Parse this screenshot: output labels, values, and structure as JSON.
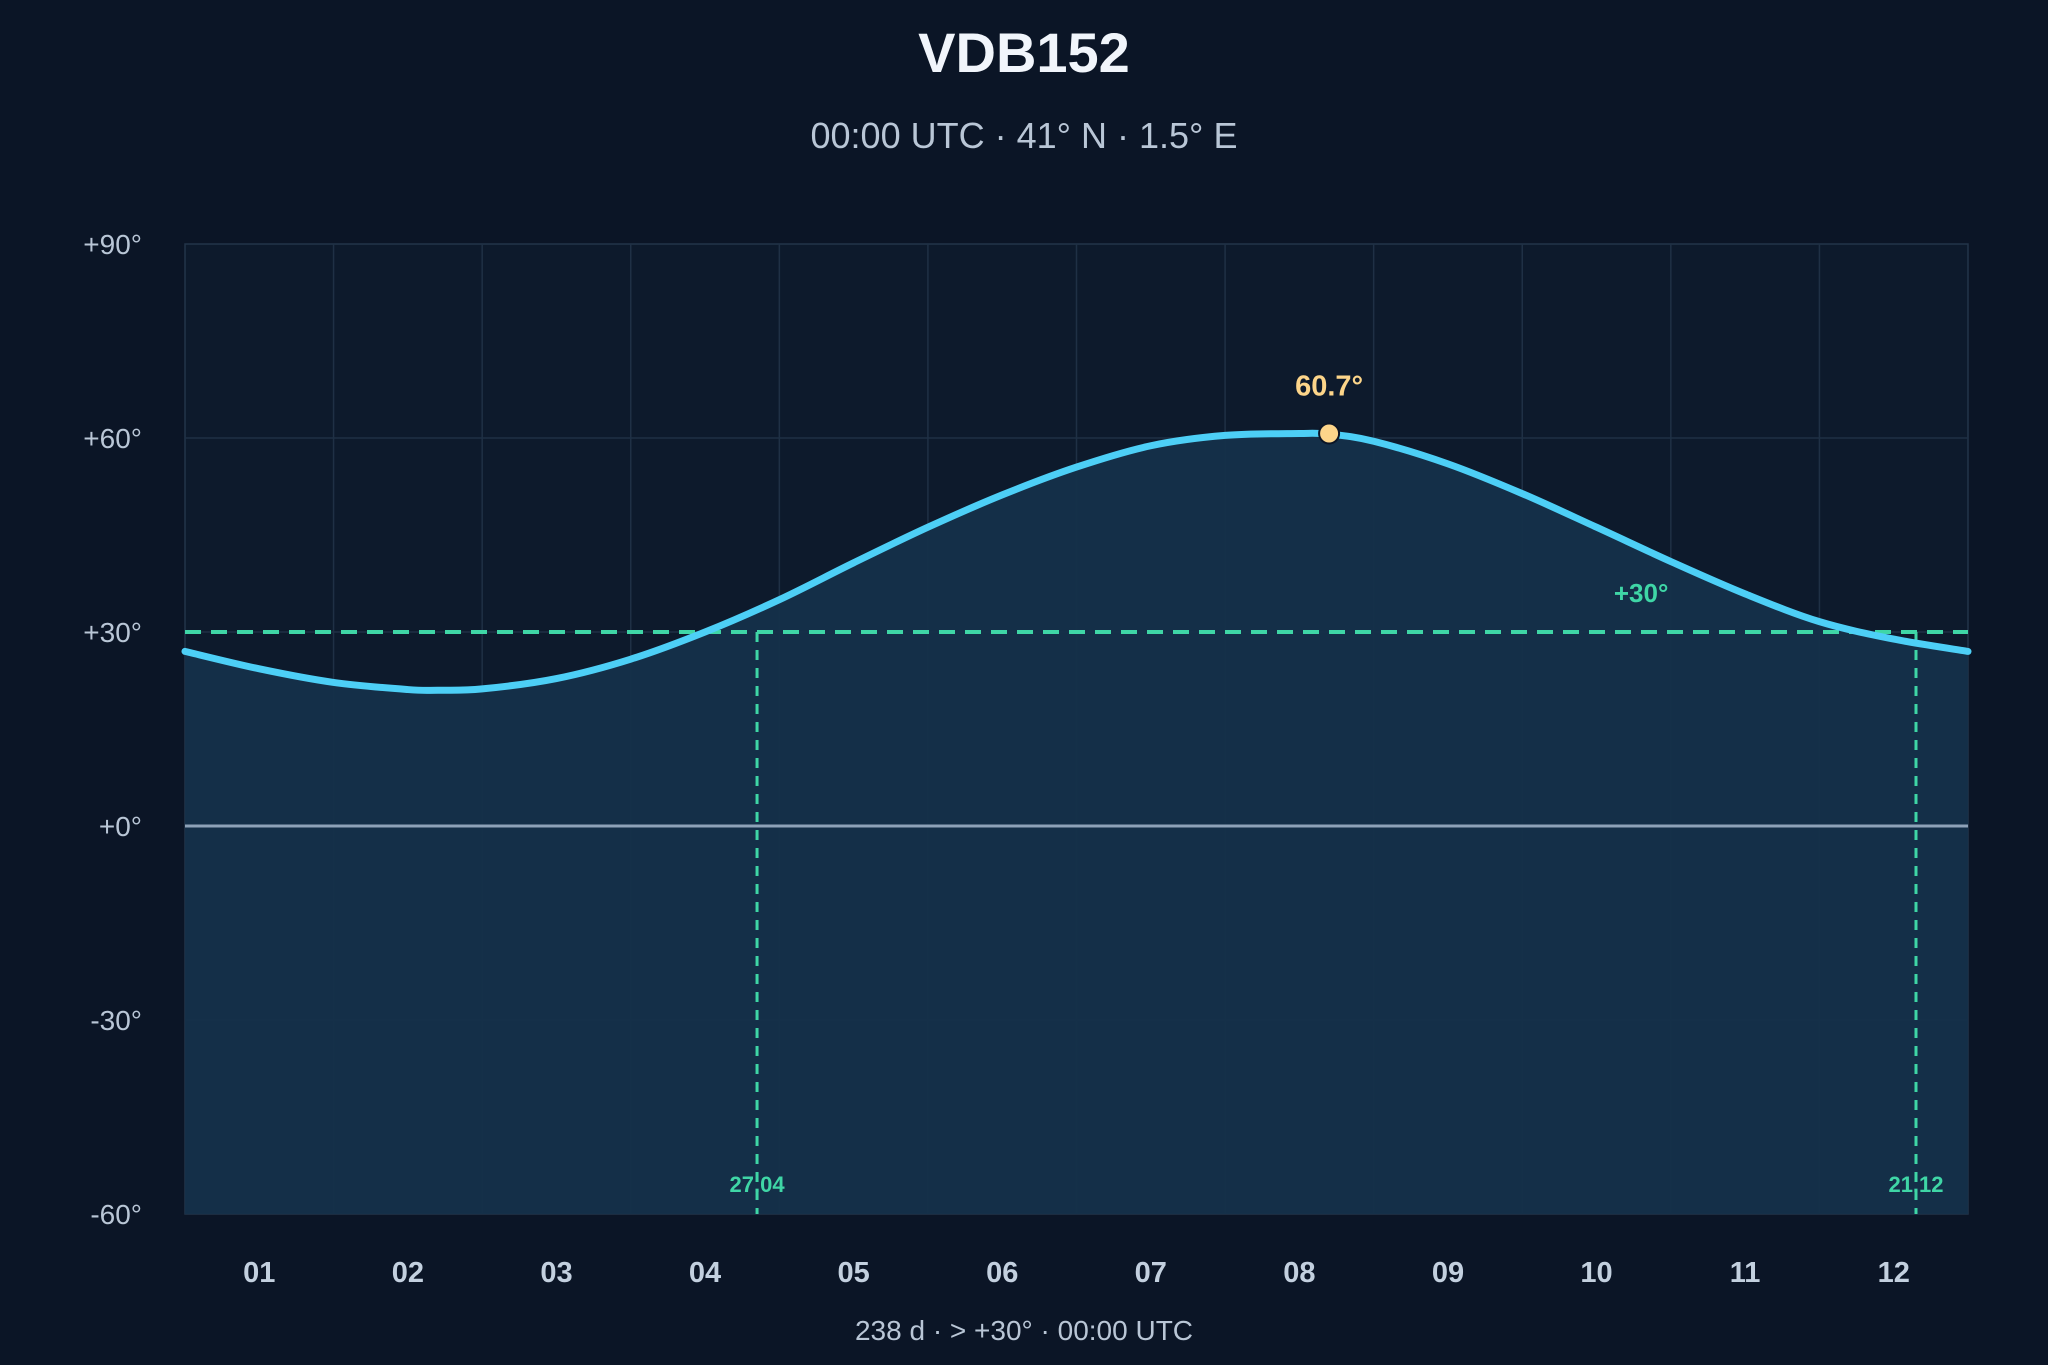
{
  "chart_data": {
    "type": "line",
    "title": "VDB152",
    "subtitle": "00:00 UTC · 41° N · 1.5° E",
    "xlabel": "",
    "ylabel": "",
    "ylim": [
      -60,
      90
    ],
    "xlim": [
      0.5,
      12.5
    ],
    "grid": true,
    "y_ticks": [
      90,
      60,
      30,
      0,
      -30,
      -60
    ],
    "y_tick_labels": [
      "+90°",
      "+60°",
      "+30°",
      "+0°",
      "-30°",
      "-60°"
    ],
    "x_tick_positions": [
      1,
      2,
      3,
      4,
      5,
      6,
      7,
      8,
      9,
      10,
      11,
      12
    ],
    "x_tick_labels": [
      "01",
      "02",
      "03",
      "04",
      "05",
      "06",
      "07",
      "08",
      "09",
      "10",
      "11",
      "12"
    ],
    "series": [
      {
        "values_x": [
          0.5,
          1.0,
          1.5,
          2.0,
          2.2,
          2.5,
          3.0,
          3.5,
          4.0,
          4.5,
          5.0,
          5.5,
          6.0,
          6.5,
          7.0,
          7.5,
          8.0,
          8.2,
          8.5,
          9.0,
          9.5,
          10.0,
          10.5,
          11.0,
          11.5,
          12.0,
          12.5
        ],
        "values": [
          27.0,
          24.3,
          22.2,
          21.1,
          21.0,
          21.2,
          22.8,
          25.8,
          30.0,
          35.0,
          40.7,
          46.2,
          51.2,
          55.5,
          58.8,
          60.4,
          60.7,
          60.6,
          59.5,
          56.0,
          51.4,
          46.2,
          40.9,
          35.9,
          31.6,
          28.9,
          27.0
        ],
        "color": "#4dcff6"
      }
    ],
    "threshold": {
      "value": 30,
      "label": "+30°",
      "color": "#3fd6a6"
    },
    "crossings": [
      {
        "x": 4.35,
        "label": "27.04"
      },
      {
        "x": 12.15,
        "label": "21.12"
      }
    ],
    "peak": {
      "x": 8.2,
      "y": 60.7,
      "label": "60.7°",
      "color": "#fcd58a"
    },
    "footer": "238 d  ·  > +30°  ·  00:00 UTC"
  }
}
